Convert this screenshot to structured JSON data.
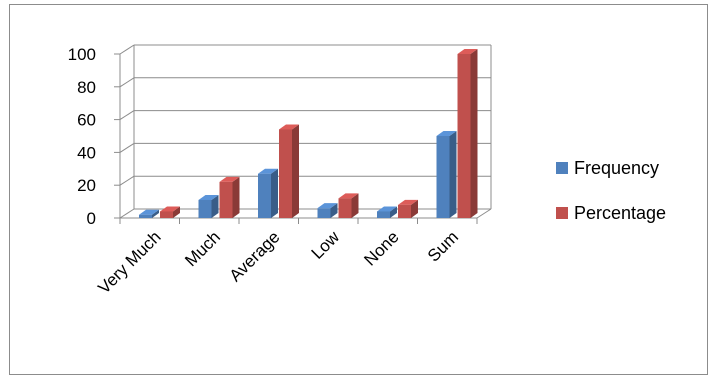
{
  "chart_data": {
    "type": "bar",
    "categories": [
      "Very Much",
      "Much",
      "Average",
      "Low",
      "None",
      "Sum"
    ],
    "series": [
      {
        "name": "Frequency",
        "values": [
          2,
          11,
          27,
          6,
          4,
          50
        ],
        "color": "#4f81bd"
      },
      {
        "name": "Percentage",
        "values": [
          4,
          22,
          54,
          12,
          8,
          100
        ],
        "color": "#c0504d"
      }
    ],
    "yticks": [
      0,
      20,
      40,
      60,
      80,
      100
    ],
    "ylim": [
      0,
      100
    ],
    "grid": true,
    "three_d": true,
    "legend_position": "right"
  }
}
